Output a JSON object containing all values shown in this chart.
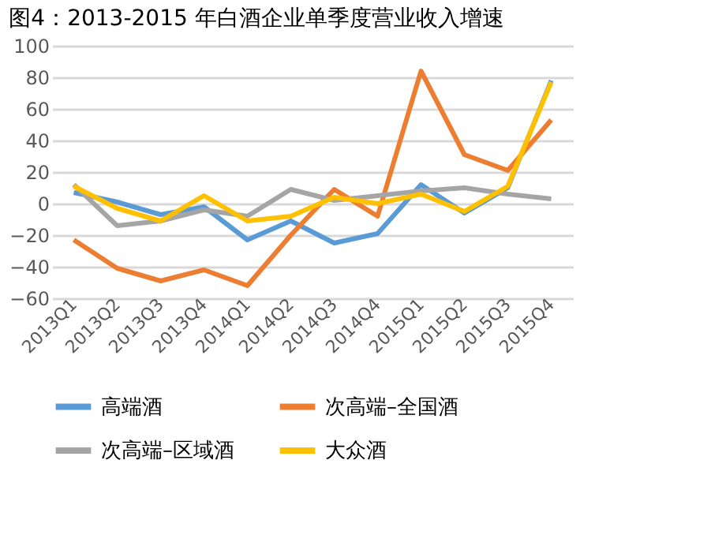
{
  "chart_data": {
    "type": "line",
    "title": "图4：2013-2015 年白酒企业单季度营业收入增速",
    "categories": [
      "2013Q1",
      "2013Q2",
      "2013Q3",
      "2013Q4",
      "2014Q1",
      "2014Q2",
      "2014Q3",
      "2014Q4",
      "2015Q1",
      "2015Q2",
      "2015Q3",
      "2015Q4"
    ],
    "series": [
      {
        "name": "高端酒",
        "color": "#5b9bd5",
        "values": [
          7,
          1,
          -7,
          -2,
          -23,
          -11,
          -25,
          -19,
          12,
          -6,
          10,
          78
        ]
      },
      {
        "name": "次高端–全国酒",
        "color": "#ed7d31",
        "values": [
          -23,
          -41,
          -49,
          -42,
          -52,
          -20,
          9,
          -8,
          84,
          31,
          21,
          53
        ]
      },
      {
        "name": "次高端–区域酒",
        "color": "#a5a5a5",
        "values": [
          12,
          -14,
          -11,
          -4,
          -8,
          9,
          2,
          5,
          8,
          10,
          6,
          3
        ]
      },
      {
        "name": "大众酒",
        "color": "#ffc000",
        "values": [
          11,
          -3,
          -11,
          5,
          -11,
          -8,
          4,
          0,
          6,
          -5,
          11,
          77
        ]
      }
    ],
    "ylim": [
      -60,
      100
    ],
    "yticks": [
      -60,
      -40,
      -20,
      0,
      20,
      40,
      60,
      80,
      100
    ],
    "grid": "y",
    "legend": "bottom",
    "marker": "none",
    "line_style": "solid"
  }
}
